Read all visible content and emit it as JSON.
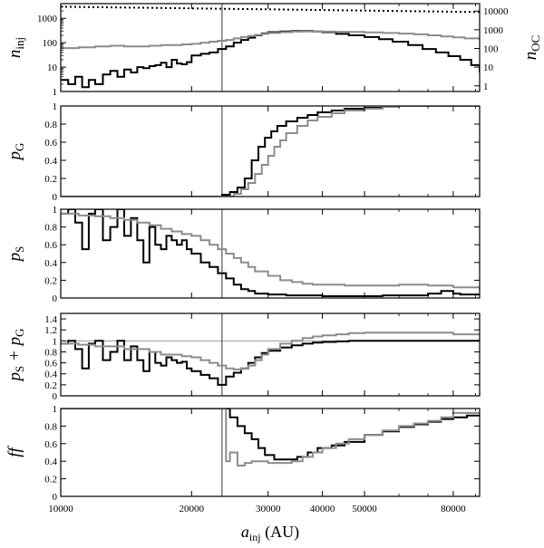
{
  "colors": {
    "black": "#000000",
    "gray": "#8c8c8c",
    "refline": "#999999",
    "frame": "#000000"
  },
  "chart_data": {
    "type": "line",
    "x_scale": "log",
    "xlim": [
      10000,
      92000
    ],
    "x_ticks": [
      10000,
      20000,
      30000,
      40000,
      50000,
      80000
    ],
    "x_tick_labels": [
      "10000",
      "20000",
      "30000",
      "40000",
      "50000",
      "80000"
    ],
    "xlabel_main": "a",
    "xlabel_sub": "inj",
    "xlabel_unit": " (AU)",
    "vline_x": 23500,
    "panels": [
      {
        "id": "ninj",
        "ylabel_main": "n",
        "ylabel_sub": "inj",
        "y_scale": "log",
        "ylim": [
          1,
          4000
        ],
        "y_ticks": [
          1,
          10,
          100,
          1000
        ],
        "y_tick_labels": [
          "1",
          "10",
          "100",
          "1000"
        ],
        "right_ylabel_main": "n",
        "right_ylabel_sub": "OC",
        "right_y_ticks": [
          1,
          10,
          100,
          1000,
          10000
        ],
        "right_y_tick_labels": [
          "1",
          "10",
          "100",
          "1000",
          "10000"
        ],
        "right_ylim": [
          0.5,
          25000
        ],
        "series": [
          {
            "color": "black",
            "style": "step",
            "x": [
              10000,
              10400,
              10800,
              11200,
              11600,
              12000,
              12500,
              13000,
              13500,
              14000,
              14500,
              15000,
              15500,
              16000,
              16500,
              17000,
              17500,
              18000,
              18500,
              19000,
              19500,
              20000,
              21000,
              22000,
              23000,
              24000,
              25000,
              26000,
              27000,
              28000,
              29000,
              30000,
              32000,
              34000,
              36000,
              38000,
              40000,
              43000,
              46000,
              50000,
              54000,
              58000,
              63000,
              68000,
              73000,
              78000,
              83000,
              88000,
              92000
            ],
            "y": [
              3,
              2,
              4,
              1.5,
              3,
              2,
              5,
              7,
              4,
              8,
              6,
              10,
              9,
              11,
              12,
              15,
              10,
              20,
              14,
              13,
              16,
              30,
              35,
              40,
              55,
              70,
              100,
              130,
              160,
              200,
              240,
              270,
              290,
              300,
              300,
              290,
              270,
              230,
              200,
              170,
              140,
              110,
              80,
              55,
              40,
              28,
              20,
              12,
              6
            ]
          },
          {
            "color": "gray",
            "style": "step",
            "x": [
              10000,
              11000,
              12000,
              13000,
              14000,
              15000,
              16000,
              17000,
              18000,
              19000,
              20000,
              21000,
              22000,
              23000,
              24000,
              25000,
              26000,
              27000,
              28000,
              29000,
              30000,
              32000,
              34000,
              36000,
              38000,
              40000,
              43000,
              46000,
              50000,
              55000,
              60000,
              65000,
              70000,
              75000,
              80000,
              85000,
              92000
            ],
            "y": [
              60,
              65,
              70,
              75,
              70,
              70,
              75,
              80,
              80,
              85,
              90,
              100,
              110,
              120,
              130,
              150,
              170,
              190,
              210,
              230,
              250,
              270,
              285,
              290,
              290,
              285,
              280,
              275,
              265,
              250,
              235,
              220,
              200,
              180,
              165,
              150,
              130
            ]
          },
          {
            "color": "black",
            "style": "dotted",
            "x": [
              10000,
              92000
            ],
            "y": [
              3000,
              1800
            ]
          }
        ]
      },
      {
        "id": "pG",
        "ylabel_main": "p",
        "ylabel_sub": "G",
        "y_scale": "linear",
        "ylim": [
          0,
          1
        ],
        "y_ticks": [
          0,
          0.2,
          0.4,
          0.6,
          0.8,
          1
        ],
        "y_tick_labels": [
          "0",
          "0.2",
          "0.4",
          "0.6",
          "0.8",
          "1"
        ],
        "series": [
          {
            "color": "black",
            "style": "step",
            "x": [
              10000,
              22500,
              23500,
              24500,
              25500,
              26500,
              27500,
              28500,
              29500,
              30500,
              31500,
              33000,
              35000,
              37000,
              39000,
              42000,
              45000,
              50000,
              55000,
              60000,
              70000,
              80000,
              92000
            ],
            "y": [
              0,
              0,
              0.02,
              0.05,
              0.1,
              0.2,
              0.4,
              0.55,
              0.65,
              0.72,
              0.78,
              0.83,
              0.87,
              0.9,
              0.93,
              0.95,
              0.97,
              0.98,
              0.99,
              1,
              1,
              1,
              1
            ]
          },
          {
            "color": "gray",
            "style": "step",
            "x": [
              10000,
              24000,
              25000,
              26000,
              27000,
              28000,
              29000,
              30000,
              31000,
              32000,
              33000,
              35000,
              37000,
              39000,
              42000,
              45000,
              50000,
              55000,
              60000,
              70000,
              80000,
              92000
            ],
            "y": [
              0,
              0,
              0.03,
              0.08,
              0.15,
              0.25,
              0.35,
              0.45,
              0.55,
              0.62,
              0.7,
              0.78,
              0.84,
              0.88,
              0.92,
              0.95,
              0.97,
              0.99,
              1,
              1,
              1,
              1
            ]
          }
        ]
      },
      {
        "id": "pS",
        "ylabel_main": "p",
        "ylabel_sub": "S",
        "y_scale": "linear",
        "ylim": [
          0,
          1
        ],
        "y_ticks": [
          0,
          0.2,
          0.4,
          0.6,
          0.8,
          1
        ],
        "y_tick_labels": [
          "0",
          "0.2",
          "0.4",
          "0.6",
          "0.8",
          "1"
        ],
        "series": [
          {
            "color": "black",
            "style": "step",
            "x": [
              10000,
              10400,
              10800,
              11200,
              11600,
              12000,
              12500,
              13000,
              13500,
              14000,
              14500,
              15000,
              15500,
              16000,
              16500,
              17000,
              17500,
              18000,
              18500,
              19000,
              19500,
              20000,
              21000,
              22000,
              23000,
              24000,
              25000,
              26000,
              27000,
              28000,
              30000,
              33000,
              36000,
              40000,
              45000,
              50000,
              55000,
              60000,
              70000,
              75000,
              80000,
              83000
            ],
            "y": [
              0.95,
              1,
              0.85,
              0.55,
              0.95,
              1,
              0.65,
              0.8,
              1,
              0.7,
              0.9,
              0.65,
              0.4,
              0.8,
              0.6,
              0.55,
              0.7,
              0.65,
              0.6,
              0.65,
              0.55,
              0.5,
              0.4,
              0.35,
              0.28,
              0.22,
              0.15,
              0.1,
              0.08,
              0.05,
              0.04,
              0.03,
              0.03,
              0.02,
              0.02,
              0.02,
              0.03,
              0.03,
              0.05,
              0.08,
              0.05,
              0.04
            ]
          },
          {
            "color": "gray",
            "style": "step",
            "x": [
              10000,
              11000,
              12000,
              13000,
              14000,
              15000,
              16000,
              17000,
              18000,
              19000,
              20000,
              21000,
              22000,
              23000,
              24000,
              25000,
              26000,
              27000,
              28000,
              30000,
              32000,
              34000,
              36000,
              38000,
              40000,
              45000,
              50000,
              55000,
              60000,
              70000,
              80000,
              92000
            ],
            "y": [
              0.95,
              0.93,
              0.92,
              0.9,
              0.88,
              0.85,
              0.82,
              0.78,
              0.75,
              0.72,
              0.7,
              0.65,
              0.6,
              0.55,
              0.5,
              0.45,
              0.4,
              0.35,
              0.3,
              0.25,
              0.2,
              0.18,
              0.16,
              0.15,
              0.15,
              0.14,
              0.14,
              0.14,
              0.15,
              0.14,
              0.12,
              0.1
            ]
          }
        ]
      },
      {
        "id": "pSpG",
        "ylabel_main": "p",
        "ylabel_sub": "S",
        "ylabel_mid": " + ",
        "ylabel_main2": "p",
        "ylabel_sub2": "G",
        "y_scale": "linear",
        "ylim": [
          0,
          1.5
        ],
        "y_ticks": [
          0,
          0.2,
          0.4,
          0.6,
          0.8,
          1,
          1.2,
          1.4
        ],
        "y_tick_labels": [
          "0",
          "0.2",
          "0.4",
          "0.6",
          "0.8",
          "1",
          "1.2",
          "1.4"
        ],
        "hline_y": 1,
        "series": [
          {
            "color": "black",
            "style": "step",
            "x": [
              10000,
              10400,
              10800,
              11200,
              11600,
              12000,
              12500,
              13000,
              13500,
              14000,
              14500,
              15000,
              15500,
              16000,
              16500,
              17000,
              17500,
              18000,
              18500,
              19000,
              19500,
              20000,
              21000,
              22000,
              23000,
              24000,
              25000,
              26000,
              27000,
              28000,
              29000,
              30000,
              32000,
              34000,
              36000,
              38000,
              40000,
              43000,
              46000,
              50000,
              55000,
              60000,
              70000,
              80000,
              92000
            ],
            "y": [
              0.95,
              1,
              0.85,
              0.5,
              0.95,
              1,
              0.65,
              0.8,
              1,
              0.65,
              0.9,
              0.65,
              0.45,
              0.8,
              0.6,
              0.55,
              0.7,
              0.65,
              0.6,
              0.62,
              0.5,
              0.45,
              0.38,
              0.32,
              0.2,
              0.35,
              0.42,
              0.5,
              0.6,
              0.7,
              0.78,
              0.82,
              0.88,
              0.92,
              0.95,
              0.97,
              0.98,
              0.99,
              1,
              1,
              1,
              1,
              1,
              1,
              1
            ]
          },
          {
            "color": "gray",
            "style": "step",
            "x": [
              10000,
              11000,
              12000,
              13000,
              14000,
              15000,
              16000,
              17000,
              18000,
              19000,
              20000,
              21000,
              22000,
              23000,
              24000,
              25000,
              26000,
              27000,
              28000,
              29000,
              30000,
              32000,
              34000,
              36000,
              38000,
              40000,
              43000,
              46000,
              50000,
              55000,
              60000,
              70000,
              80000,
              92000
            ],
            "y": [
              0.95,
              0.93,
              0.9,
              0.9,
              0.85,
              0.85,
              0.8,
              0.75,
              0.75,
              0.72,
              0.7,
              0.65,
              0.6,
              0.55,
              0.5,
              0.48,
              0.5,
              0.55,
              0.65,
              0.75,
              0.85,
              0.95,
              1,
              1.05,
              1.08,
              1.1,
              1.12,
              1.14,
              1.15,
              1.15,
              1.15,
              1.15,
              1.12,
              1.1
            ]
          }
        ]
      },
      {
        "id": "ff",
        "ylabel_main": "ff",
        "y_scale": "linear",
        "ylim": [
          0,
          1
        ],
        "y_ticks": [
          0,
          0.2,
          0.4,
          0.6,
          0.8,
          1
        ],
        "y_tick_labels": [
          "0",
          "0.2",
          "0.4",
          "0.6",
          "0.8",
          "1"
        ],
        "series": [
          {
            "color": "black",
            "style": "step",
            "x": [
              10000,
              23500,
              24500,
              25500,
              26500,
              27500,
              28500,
              29500,
              31000,
              33000,
              35000,
              37000,
              39000,
              42000,
              45000,
              50000,
              55000,
              60000,
              65000,
              70000,
              75000,
              80000,
              86000,
              92000
            ],
            "y": [
              1,
              1,
              0.9,
              0.8,
              0.72,
              0.65,
              0.55,
              0.47,
              0.42,
              0.42,
              0.45,
              0.5,
              0.55,
              0.58,
              0.62,
              0.7,
              0.74,
              0.79,
              0.82,
              0.85,
              0.88,
              0.9,
              0.92,
              0.93
            ]
          },
          {
            "color": "gray",
            "style": "step",
            "x": [
              10000,
              23500,
              24000,
              24500,
              25500,
              26500,
              27500,
              28500,
              30000,
              32000,
              34000,
              36000,
              38000,
              40000,
              43000,
              46000,
              50000,
              55000,
              60000,
              65000,
              70000,
              75000,
              80000,
              86000,
              92000
            ],
            "y": [
              1,
              1,
              0.4,
              0.5,
              0.35,
              0.38,
              0.4,
              0.4,
              0.38,
              0.38,
              0.4,
              0.45,
              0.5,
              0.55,
              0.6,
              0.65,
              0.7,
              0.75,
              0.8,
              0.83,
              0.86,
              0.9,
              0.95,
              0.95,
              0.95
            ]
          }
        ]
      }
    ]
  }
}
